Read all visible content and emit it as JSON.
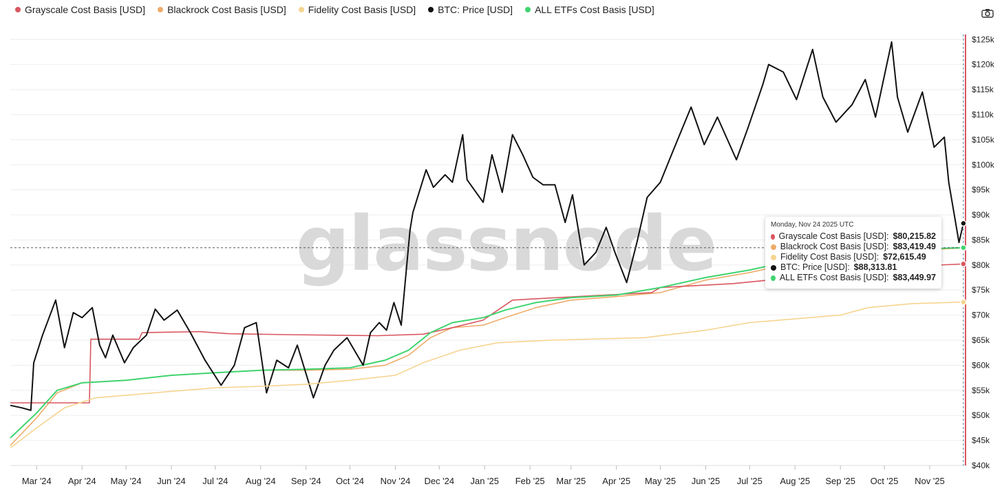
{
  "legend": [
    {
      "label": "Grayscale Cost Basis [USD]",
      "color": "#d9565f"
    },
    {
      "label": "Blackrock Cost Basis [USD]",
      "color": "#efab6b"
    },
    {
      "label": "Fidelity Cost Basis [USD]",
      "color": "#f6d48f"
    },
    {
      "label": "BTC: Price [USD]",
      "color": "#111111"
    },
    {
      "label": "ALL ETFs Cost Basis [USD]",
      "color": "#3fd46f"
    }
  ],
  "watermark": "glassnode",
  "icons": {
    "camera": "camera-icon"
  },
  "tooltip": {
    "date": "Monday, Nov 24 2025 UTC",
    "rows": [
      {
        "label": "Grayscale Cost Basis [USD]:",
        "value": "$80,215.82",
        "color": "#d9565f"
      },
      {
        "label": "Blackrock Cost Basis [USD]:",
        "value": "$83,419.49",
        "color": "#efab6b"
      },
      {
        "label": "Fidelity Cost Basis [USD]:",
        "value": "$72,615.49",
        "color": "#f6d48f"
      },
      {
        "label": "BTC: Price [USD]:",
        "value": "$88,313.81",
        "color": "#111111"
      },
      {
        "label": "ALL ETFs Cost Basis [USD]:",
        "value": "$83,449.97",
        "color": "#3fd46f"
      }
    ]
  },
  "chart_data": {
    "type": "line",
    "ylim": [
      40000,
      126000
    ],
    "y_ticks": [
      {
        "value": 40000,
        "label": "$40k"
      },
      {
        "value": 45000,
        "label": "$45k"
      },
      {
        "value": 50000,
        "label": "$50k"
      },
      {
        "value": 55000,
        "label": "$55k"
      },
      {
        "value": 60000,
        "label": "$60k"
      },
      {
        "value": 65000,
        "label": "$65k"
      },
      {
        "value": 70000,
        "label": "$70k"
      },
      {
        "value": 75000,
        "label": "$75k"
      },
      {
        "value": 80000,
        "label": "$80k"
      },
      {
        "value": 85000,
        "label": "$85k"
      },
      {
        "value": 90000,
        "label": "$90k"
      },
      {
        "value": 95000,
        "label": "$95k"
      },
      {
        "value": 100000,
        "label": "$100k"
      },
      {
        "value": 105000,
        "label": "$105k"
      },
      {
        "value": 110000,
        "label": "$110k"
      },
      {
        "value": 115000,
        "label": "$115k"
      },
      {
        "value": 120000,
        "label": "$120k"
      },
      {
        "value": 125000,
        "label": "$125k"
      }
    ],
    "xlim": [
      "2024-02-12",
      "2025-11-25"
    ],
    "x_ticks": [
      {
        "date": "2024-03-01",
        "label": "Mar '24"
      },
      {
        "date": "2024-04-01",
        "label": "Apr '24"
      },
      {
        "date": "2024-05-01",
        "label": "May '24"
      },
      {
        "date": "2024-06-01",
        "label": "Jun '24"
      },
      {
        "date": "2024-07-01",
        "label": "Jul '24"
      },
      {
        "date": "2024-08-01",
        "label": "Aug '24"
      },
      {
        "date": "2024-09-01",
        "label": "Sep '24"
      },
      {
        "date": "2024-10-01",
        "label": "Oct '24"
      },
      {
        "date": "2024-11-01",
        "label": "Nov '24"
      },
      {
        "date": "2024-12-01",
        "label": "Dec '24"
      },
      {
        "date": "2025-01-01",
        "label": "Jan '25"
      },
      {
        "date": "2025-02-01",
        "label": "Feb '25"
      },
      {
        "date": "2025-03-01",
        "label": "Mar '25"
      },
      {
        "date": "2025-04-01",
        "label": "Apr '25"
      },
      {
        "date": "2025-05-01",
        "label": "May '25"
      },
      {
        "date": "2025-06-01",
        "label": "Jun '25"
      },
      {
        "date": "2025-07-01",
        "label": "Jul '25"
      },
      {
        "date": "2025-08-01",
        "label": "Aug '25"
      },
      {
        "date": "2025-09-01",
        "label": "Sep '25"
      },
      {
        "date": "2025-10-01",
        "label": "Oct '25"
      },
      {
        "date": "2025-11-01",
        "label": "Nov '25"
      }
    ],
    "hover_date": "2025-11-24",
    "hover_value": 83449.97,
    "series": [
      {
        "name": "BTC: Price [USD]",
        "color": "#111111",
        "width": 2,
        "points": [
          [
            "2024-02-12",
            52000
          ],
          [
            "2024-02-20",
            51500
          ],
          [
            "2024-02-26",
            51000
          ],
          [
            "2024-02-28",
            60500
          ],
          [
            "2024-03-05",
            66000
          ],
          [
            "2024-03-14",
            73000
          ],
          [
            "2024-03-20",
            63500
          ],
          [
            "2024-03-26",
            70500
          ],
          [
            "2024-04-01",
            69500
          ],
          [
            "2024-04-08",
            71500
          ],
          [
            "2024-04-13",
            64000
          ],
          [
            "2024-04-17",
            61500
          ],
          [
            "2024-04-22",
            66000
          ],
          [
            "2024-04-30",
            60500
          ],
          [
            "2024-05-06",
            63500
          ],
          [
            "2024-05-15",
            66000
          ],
          [
            "2024-05-21",
            71200
          ],
          [
            "2024-05-27",
            69000
          ],
          [
            "2024-06-05",
            71000
          ],
          [
            "2024-06-14",
            66500
          ],
          [
            "2024-06-24",
            61000
          ],
          [
            "2024-07-05",
            56000
          ],
          [
            "2024-07-14",
            60000
          ],
          [
            "2024-07-21",
            67500
          ],
          [
            "2024-07-29",
            68500
          ],
          [
            "2024-08-05",
            54500
          ],
          [
            "2024-08-12",
            61000
          ],
          [
            "2024-08-20",
            59500
          ],
          [
            "2024-08-26",
            64000
          ],
          [
            "2024-09-06",
            53500
          ],
          [
            "2024-09-14",
            60000
          ],
          [
            "2024-09-20",
            63000
          ],
          [
            "2024-09-29",
            65500
          ],
          [
            "2024-10-10",
            60000
          ],
          [
            "2024-10-15",
            66500
          ],
          [
            "2024-10-21",
            68500
          ],
          [
            "2024-10-26",
            67000
          ],
          [
            "2024-10-31",
            72500
          ],
          [
            "2024-11-05",
            68000
          ],
          [
            "2024-11-11",
            87000
          ],
          [
            "2024-11-13",
            90500
          ],
          [
            "2024-11-22",
            99000
          ],
          [
            "2024-11-27",
            95500
          ],
          [
            "2024-12-05",
            98000
          ],
          [
            "2024-12-10",
            96500
          ],
          [
            "2024-12-17",
            106000
          ],
          [
            "2024-12-20",
            97000
          ],
          [
            "2024-12-31",
            92500
          ],
          [
            "2025-01-06",
            102000
          ],
          [
            "2025-01-13",
            94500
          ],
          [
            "2025-01-20",
            106000
          ],
          [
            "2025-01-27",
            102000
          ],
          [
            "2025-02-03",
            97500
          ],
          [
            "2025-02-10",
            96000
          ],
          [
            "2025-02-18",
            96000
          ],
          [
            "2025-02-25",
            88500
          ],
          [
            "2025-03-02",
            94000
          ],
          [
            "2025-03-10",
            80000
          ],
          [
            "2025-03-18",
            82500
          ],
          [
            "2025-03-25",
            87500
          ],
          [
            "2025-03-31",
            82500
          ],
          [
            "2025-04-08",
            76500
          ],
          [
            "2025-04-15",
            84500
          ],
          [
            "2025-04-22",
            93500
          ],
          [
            "2025-05-01",
            96500
          ],
          [
            "2025-05-10",
            103000
          ],
          [
            "2025-05-22",
            111500
          ],
          [
            "2025-05-31",
            104000
          ],
          [
            "2025-06-09",
            109500
          ],
          [
            "2025-06-22",
            101000
          ],
          [
            "2025-06-30",
            107500
          ],
          [
            "2025-07-10",
            116000
          ],
          [
            "2025-07-14",
            120000
          ],
          [
            "2025-07-24",
            118500
          ],
          [
            "2025-08-02",
            113000
          ],
          [
            "2025-08-13",
            123000
          ],
          [
            "2025-08-20",
            113500
          ],
          [
            "2025-08-29",
            108500
          ],
          [
            "2025-09-09",
            112000
          ],
          [
            "2025-09-18",
            117000
          ],
          [
            "2025-09-25",
            109500
          ],
          [
            "2025-10-06",
            124500
          ],
          [
            "2025-10-10",
            113500
          ],
          [
            "2025-10-17",
            106500
          ],
          [
            "2025-10-27",
            114500
          ],
          [
            "2025-11-04",
            103500
          ],
          [
            "2025-11-11",
            105500
          ],
          [
            "2025-11-14",
            96500
          ],
          [
            "2025-11-21",
            84500
          ],
          [
            "2025-11-24",
            88313.81
          ]
        ]
      },
      {
        "name": "Grayscale Cost Basis [USD]",
        "color": "#d9565f",
        "width": 1.6,
        "points": [
          [
            "2024-02-12",
            52500
          ],
          [
            "2024-04-06",
            52500
          ],
          [
            "2024-04-07",
            65200
          ],
          [
            "2024-05-10",
            65200
          ],
          [
            "2024-05-12",
            66500
          ],
          [
            "2024-06-20",
            66700
          ],
          [
            "2024-07-10",
            66300
          ],
          [
            "2024-08-20",
            66100
          ],
          [
            "2024-10-20",
            65900
          ],
          [
            "2024-11-20",
            66200
          ],
          [
            "2024-12-10",
            67500
          ],
          [
            "2024-12-31",
            69000
          ],
          [
            "2025-01-10",
            71000
          ],
          [
            "2025-01-20",
            73000
          ],
          [
            "2025-02-20",
            73500
          ],
          [
            "2025-04-25",
            74500
          ],
          [
            "2025-05-01",
            75500
          ],
          [
            "2025-06-20",
            76300
          ],
          [
            "2025-08-01",
            77500
          ],
          [
            "2025-10-01",
            79500
          ],
          [
            "2025-11-24",
            80215.82
          ]
        ]
      },
      {
        "name": "Blackrock Cost Basis [USD]",
        "color": "#efab6b",
        "width": 1.6,
        "points": [
          [
            "2024-02-12",
            44000
          ],
          [
            "2024-03-01",
            49500
          ],
          [
            "2024-03-15",
            54500
          ],
          [
            "2024-04-01",
            56500
          ],
          [
            "2024-05-01",
            57000
          ],
          [
            "2024-06-01",
            58000
          ],
          [
            "2024-07-01",
            58500
          ],
          [
            "2024-08-01",
            59000
          ],
          [
            "2024-09-01",
            59000
          ],
          [
            "2024-10-01",
            59200
          ],
          [
            "2024-10-25",
            60000
          ],
          [
            "2024-11-10",
            62000
          ],
          [
            "2024-11-25",
            65500
          ],
          [
            "2024-12-10",
            67500
          ],
          [
            "2024-12-31",
            68000
          ],
          [
            "2025-01-15",
            69500
          ],
          [
            "2025-02-05",
            71500
          ],
          [
            "2025-03-01",
            73000
          ],
          [
            "2025-04-01",
            73700
          ],
          [
            "2025-05-01",
            74500
          ],
          [
            "2025-06-01",
            77000
          ],
          [
            "2025-07-01",
            78500
          ],
          [
            "2025-08-01",
            80500
          ],
          [
            "2025-09-01",
            81500
          ],
          [
            "2025-10-01",
            82500
          ],
          [
            "2025-11-24",
            83419.49
          ]
        ]
      },
      {
        "name": "Fidelity Cost Basis [USD]",
        "color": "#f6d48f",
        "width": 1.6,
        "points": [
          [
            "2024-02-12",
            43500
          ],
          [
            "2024-03-01",
            47500
          ],
          [
            "2024-03-20",
            51500
          ],
          [
            "2024-04-10",
            53500
          ],
          [
            "2024-05-01",
            54000
          ],
          [
            "2024-06-01",
            54800
          ],
          [
            "2024-07-01",
            55500
          ],
          [
            "2024-08-01",
            55800
          ],
          [
            "2024-09-01",
            56200
          ],
          [
            "2024-10-01",
            57000
          ],
          [
            "2024-11-01",
            58000
          ],
          [
            "2024-11-20",
            60500
          ],
          [
            "2024-12-15",
            63000
          ],
          [
            "2025-01-10",
            64500
          ],
          [
            "2025-02-15",
            65000
          ],
          [
            "2025-04-20",
            65500
          ],
          [
            "2025-06-01",
            67000
          ],
          [
            "2025-07-01",
            68500
          ],
          [
            "2025-09-01",
            70000
          ],
          [
            "2025-09-20",
            71500
          ],
          [
            "2025-10-20",
            72300
          ],
          [
            "2025-11-24",
            72615.49
          ]
        ]
      },
      {
        "name": "ALL ETFs Cost Basis [USD]",
        "color": "#3fd46f",
        "width": 2,
        "points": [
          [
            "2024-02-12",
            45500
          ],
          [
            "2024-03-01",
            50500
          ],
          [
            "2024-03-15",
            55000
          ],
          [
            "2024-04-01",
            56500
          ],
          [
            "2024-05-01",
            57000
          ],
          [
            "2024-06-01",
            58000
          ],
          [
            "2024-07-01",
            58500
          ],
          [
            "2024-08-01",
            59000
          ],
          [
            "2024-09-01",
            59200
          ],
          [
            "2024-10-01",
            59500
          ],
          [
            "2024-10-25",
            61000
          ],
          [
            "2024-11-10",
            63000
          ],
          [
            "2024-11-25",
            66500
          ],
          [
            "2024-12-10",
            68500
          ],
          [
            "2024-12-31",
            69500
          ],
          [
            "2025-01-15",
            71000
          ],
          [
            "2025-02-05",
            72500
          ],
          [
            "2025-03-01",
            73500
          ],
          [
            "2025-04-01",
            74000
          ],
          [
            "2025-05-01",
            75500
          ],
          [
            "2025-06-01",
            77500
          ],
          [
            "2025-07-01",
            79000
          ],
          [
            "2025-08-01",
            81000
          ],
          [
            "2025-09-01",
            82000
          ],
          [
            "2025-10-01",
            83000
          ],
          [
            "2025-11-24",
            83449.97
          ]
        ]
      }
    ]
  }
}
